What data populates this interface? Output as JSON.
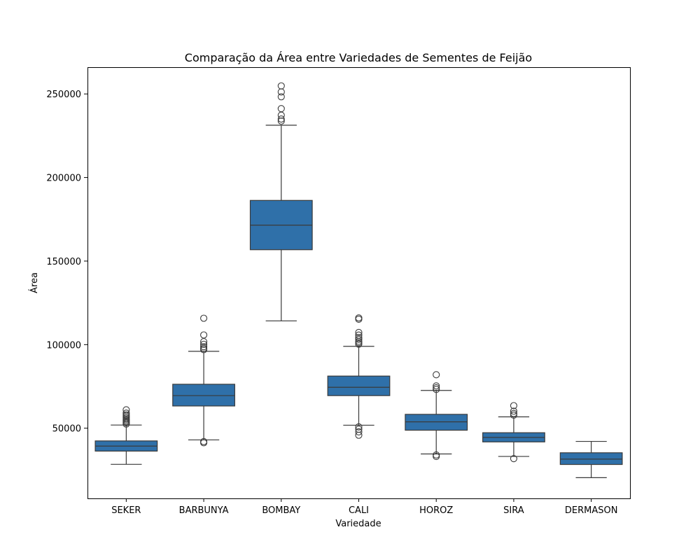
{
  "chart_data": {
    "type": "boxplot",
    "title": "Comparação da Área entre Variedades de Sementes de Feijão",
    "xlabel": "Variedade",
    "ylabel": "Área",
    "ylim": [
      8000,
      266000
    ],
    "yticks": [
      50000,
      100000,
      150000,
      200000,
      250000
    ],
    "grid": false,
    "box_color": "#2f70a9",
    "line_color": "#3a3a3a",
    "categories": [
      "SEKER",
      "BARBUNYA",
      "BOMBAY",
      "CALI",
      "HOROZ",
      "SIRA",
      "DERMASON"
    ],
    "boxes": [
      {
        "category": "SEKER",
        "whisker_low": 28400,
        "q1": 36300,
        "median": 39300,
        "q3": 42400,
        "whisker_high": 51900,
        "outliers": [
          52500,
          53300,
          54000,
          54800,
          55500,
          56300,
          57200,
          58000,
          59000,
          61000
        ]
      },
      {
        "category": "BARBUNYA",
        "whisker_low": 43000,
        "q1": 63300,
        "median": 69500,
        "q3": 76300,
        "whisker_high": 96000,
        "outliers": [
          41300,
          42000,
          97000,
          97800,
          98800,
          100200,
          101800,
          105800,
          115800
        ]
      },
      {
        "category": "BOMBAY",
        "whisker_low": 114200,
        "q1": 156800,
        "median": 171500,
        "q3": 186300,
        "whisker_high": 231300,
        "outliers": [
          233800,
          235000,
          237300,
          241200,
          248300,
          251200,
          254800
        ]
      },
      {
        "category": "CALI",
        "whisker_low": 51800,
        "q1": 69500,
        "median": 74500,
        "q3": 81200,
        "whisker_high": 99000,
        "outliers": [
          45800,
          47800,
          49400,
          50800,
          100300,
          101200,
          102000,
          103200,
          104300,
          105700,
          107300,
          115200,
          116000
        ]
      },
      {
        "category": "HOROZ",
        "whisker_low": 34600,
        "q1": 48800,
        "median": 53800,
        "q3": 58300,
        "whisker_high": 72600,
        "outliers": [
          33100,
          34000,
          73200,
          74200,
          75300,
          82000
        ]
      },
      {
        "category": "SIRA",
        "whisker_low": 33100,
        "q1": 41800,
        "median": 44500,
        "q3": 47300,
        "whisker_high": 56800,
        "outliers": [
          31800,
          57800,
          58800,
          60200,
          63500
        ]
      },
      {
        "category": "DERMASON",
        "whisker_low": 20400,
        "q1": 28300,
        "median": 31500,
        "q3": 35300,
        "whisker_high": 42100,
        "outliers": []
      }
    ]
  }
}
